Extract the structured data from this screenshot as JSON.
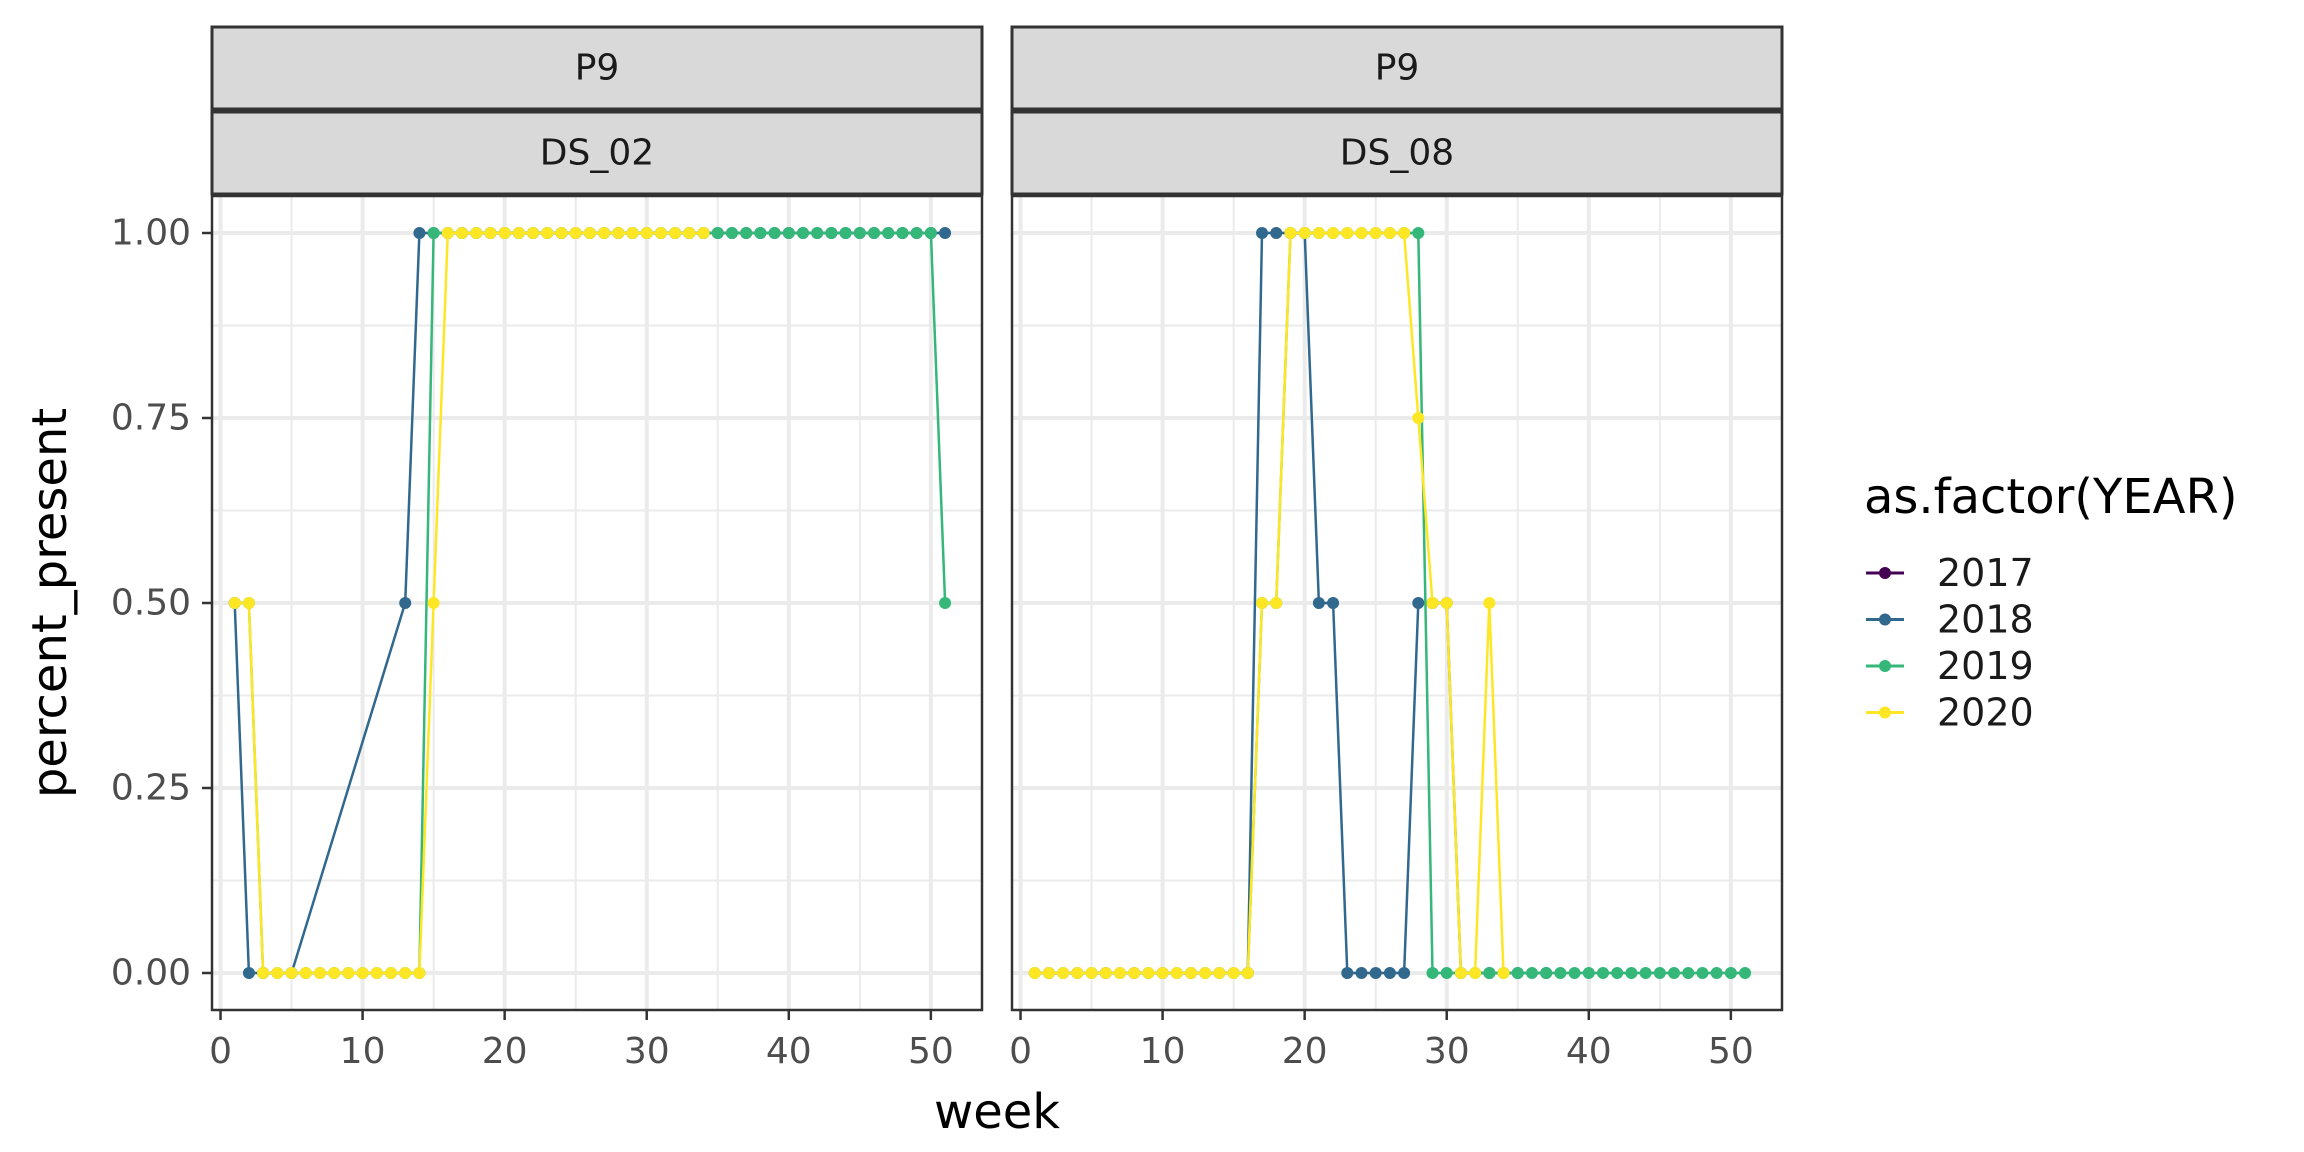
{
  "chart_data": {
    "type": "line",
    "xlabel": "week",
    "ylabel": "percent_present",
    "xlim": [
      -0.6,
      53.6
    ],
    "ylim": [
      -0.05,
      1.05
    ],
    "x_ticks": [
      0,
      10,
      20,
      30,
      40,
      50
    ],
    "y_ticks": [
      0.0,
      0.25,
      0.5,
      0.75,
      1.0
    ],
    "x_tick_labels": [
      "0",
      "10",
      "20",
      "30",
      "40",
      "50"
    ],
    "y_tick_labels": [
      "0.00",
      "0.25",
      "0.50",
      "0.75",
      "1.00"
    ],
    "grid": true,
    "legend": {
      "title": "as.factor(YEAR)",
      "position": "right",
      "entries": [
        {
          "label": "2017",
          "color": "#440154"
        },
        {
          "label": "2018",
          "color": "#31688e"
        },
        {
          "label": "2019",
          "color": "#35b779"
        },
        {
          "label": "2020",
          "color": "#fde725"
        }
      ]
    },
    "panels": [
      {
        "strip_top": "P9",
        "strip_bottom": "DS_02",
        "series": [
          {
            "name": "2018",
            "color": "#31688e",
            "x": [
              1,
              2,
              3,
              5,
              13,
              14,
              15,
              16,
              17,
              18,
              19,
              20,
              21,
              22,
              23,
              24,
              25,
              26,
              27,
              28,
              29,
              30,
              31,
              32,
              33,
              34,
              35,
              36,
              37,
              38,
              39,
              40,
              41,
              42,
              43,
              44,
              45,
              46,
              47,
              48,
              49,
              50,
              51
            ],
            "y": [
              0.5,
              0,
              0,
              0,
              0.5,
              1,
              1,
              1,
              1,
              1,
              1,
              1,
              1,
              1,
              1,
              1,
              1,
              1,
              1,
              1,
              1,
              1,
              1,
              1,
              1,
              1,
              1,
              1,
              1,
              1,
              1,
              1,
              1,
              1,
              1,
              1,
              1,
              1,
              1,
              1,
              1,
              1,
              1
            ]
          },
          {
            "name": "2019",
            "color": "#35b779",
            "x": [
              1,
              2,
              3,
              4,
              5,
              6,
              7,
              8,
              9,
              10,
              11,
              12,
              13,
              14,
              15,
              16,
              17,
              18,
              19,
              20,
              21,
              22,
              23,
              24,
              25,
              26,
              27,
              28,
              29,
              30,
              31,
              32,
              33,
              34,
              35,
              36,
              37,
              38,
              39,
              40,
              41,
              42,
              43,
              44,
              45,
              46,
              47,
              48,
              49,
              50,
              51
            ],
            "y": [
              0.5,
              0.5,
              0,
              0,
              0,
              0,
              0,
              0,
              0,
              0,
              0,
              0,
              0,
              0,
              1,
              1,
              1,
              1,
              1,
              1,
              1,
              1,
              1,
              1,
              1,
              1,
              1,
              1,
              1,
              1,
              1,
              1,
              1,
              1,
              1,
              1,
              1,
              1,
              1,
              1,
              1,
              1,
              1,
              1,
              1,
              1,
              1,
              1,
              1,
              1,
              0.5
            ]
          },
          {
            "name": "2020",
            "color": "#fde725",
            "x": [
              1,
              2,
              3,
              4,
              5,
              6,
              7,
              8,
              9,
              10,
              11,
              12,
              13,
              14,
              15,
              16,
              17,
              18,
              19,
              20,
              21,
              22,
              23,
              24,
              25,
              26,
              27,
              28,
              29,
              30,
              31,
              32,
              33,
              34
            ],
            "y": [
              0.5,
              0.5,
              0,
              0,
              0,
              0,
              0,
              0,
              0,
              0,
              0,
              0,
              0,
              0,
              0.5,
              1,
              1,
              1,
              1,
              1,
              1,
              1,
              1,
              1,
              1,
              1,
              1,
              1,
              1,
              1,
              1,
              1,
              1,
              1
            ]
          }
        ]
      },
      {
        "strip_top": "P9",
        "strip_bottom": "DS_08",
        "series": [
          {
            "name": "2018",
            "color": "#31688e",
            "x": [
              2,
              4,
              6,
              8,
              10,
              12,
              14,
              16,
              17,
              18,
              19,
              20,
              21,
              22,
              23,
              24,
              25,
              26,
              27,
              28,
              29,
              30,
              31,
              33,
              35,
              37
            ],
            "y": [
              0,
              0,
              0,
              0,
              0,
              0,
              0,
              0,
              1,
              1,
              1,
              1,
              0.5,
              0.5,
              0,
              0,
              0,
              0,
              0,
              0.5,
              0.5,
              0.5,
              0,
              0,
              0,
              0
            ]
          },
          {
            "name": "2019",
            "color": "#35b779",
            "x": [
              1,
              3,
              5,
              7,
              9,
              11,
              13,
              15,
              16,
              17,
              18,
              19,
              20,
              21,
              22,
              23,
              24,
              25,
              26,
              27,
              28,
              29,
              30,
              31,
              32,
              33,
              34,
              35,
              36,
              37,
              38,
              39,
              40,
              41,
              42,
              43,
              44,
              45,
              46,
              47,
              48,
              49,
              50,
              51
            ],
            "y": [
              0,
              0,
              0,
              0,
              0,
              0,
              0,
              0,
              0,
              0.5,
              0.5,
              1,
              1,
              1,
              1,
              1,
              1,
              1,
              1,
              1,
              1,
              0,
              0,
              0,
              0,
              0,
              0,
              0,
              0,
              0,
              0,
              0,
              0,
              0,
              0,
              0,
              0,
              0,
              0,
              0,
              0,
              0,
              0,
              0
            ]
          },
          {
            "name": "2020",
            "color": "#fde725",
            "x": [
              1,
              2,
              3,
              4,
              5,
              6,
              7,
              8,
              9,
              10,
              11,
              12,
              13,
              14,
              15,
              16,
              17,
              18,
              19,
              20,
              21,
              22,
              23,
              24,
              25,
              26,
              27,
              28,
              29,
              30,
              31,
              32,
              33,
              34
            ],
            "y": [
              0,
              0,
              0,
              0,
              0,
              0,
              0,
              0,
              0,
              0,
              0,
              0,
              0,
              0,
              0,
              0,
              0.5,
              0.5,
              1,
              1,
              1,
              1,
              1,
              1,
              1,
              1,
              1,
              0.75,
              0.5,
              0.5,
              0,
              0,
              0.5,
              0
            ]
          }
        ]
      }
    ]
  }
}
